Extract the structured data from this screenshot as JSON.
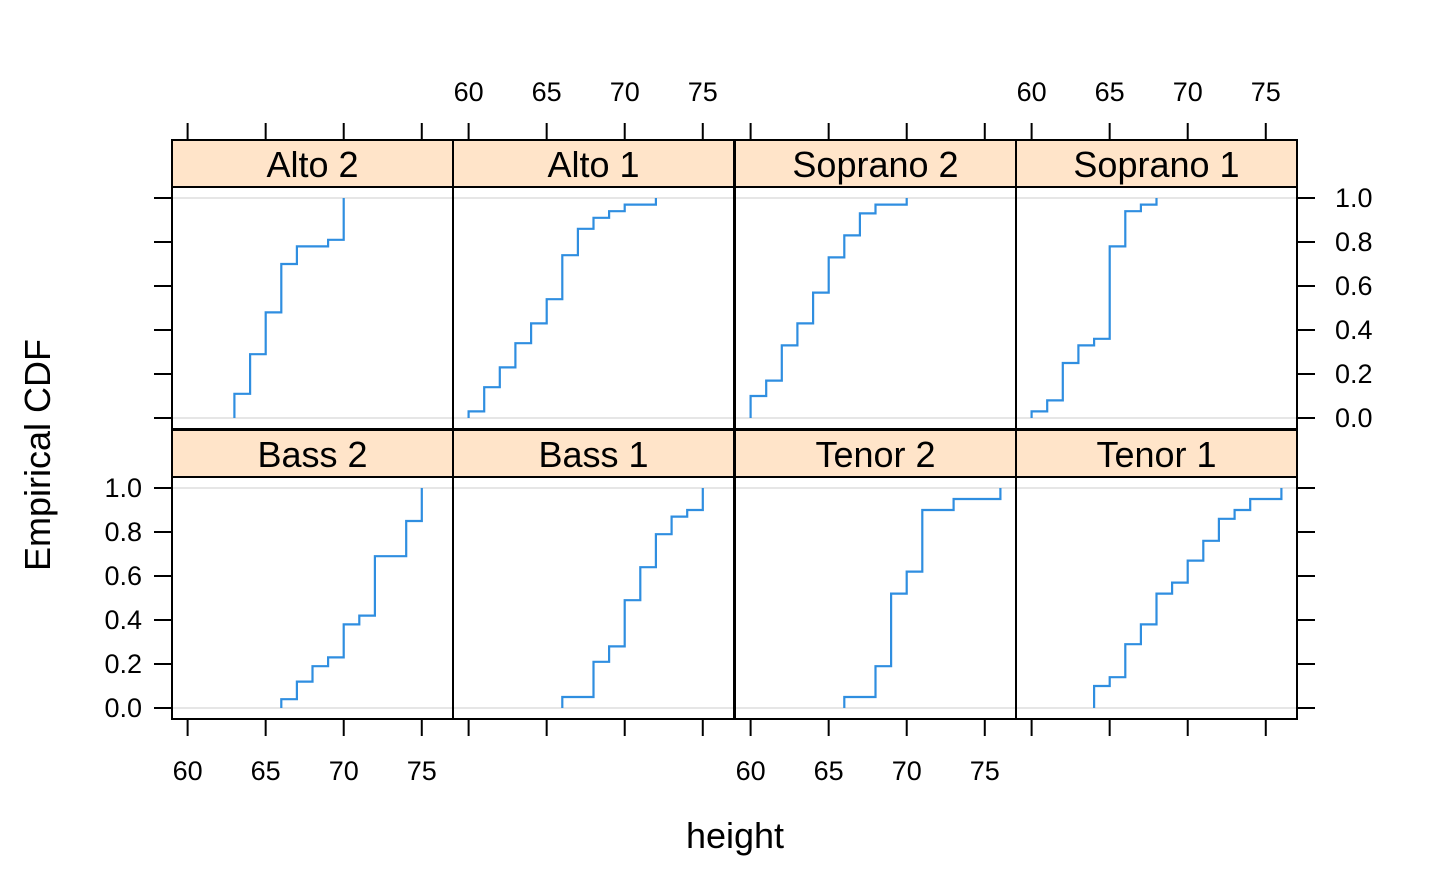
{
  "chart_data": {
    "type": "line",
    "xlabel": "height",
    "ylabel": "Empirical CDF",
    "xlim": [
      59,
      77
    ],
    "ylim": [
      -0.05,
      1.05
    ],
    "x_ticks": [
      60,
      65,
      70,
      75
    ],
    "y_ticks": [
      0.0,
      0.2,
      0.4,
      0.6,
      0.8,
      1.0
    ],
    "y_tick_labels": [
      "0.0",
      "0.2",
      "0.4",
      "0.6",
      "0.8",
      "1.0"
    ],
    "grid": "reference lines at 0 and 1",
    "colors": {
      "line": "#2f8ee0",
      "strip": "#ffe4c9",
      "reference": "#e6e6e6"
    },
    "layout": {
      "columns": 4,
      "rows": 2
    },
    "panels": [
      {
        "label": "Bass 2",
        "steps": [
          [
            66,
            0.04
          ],
          [
            67,
            0.12
          ],
          [
            68,
            0.19
          ],
          [
            69,
            0.23
          ],
          [
            70,
            0.38
          ],
          [
            71,
            0.42
          ],
          [
            72,
            0.69
          ],
          [
            74,
            0.85
          ],
          [
            75,
            1.0
          ]
        ]
      },
      {
        "label": "Bass 1",
        "steps": [
          [
            66,
            0.05
          ],
          [
            68,
            0.21
          ],
          [
            69,
            0.28
          ],
          [
            70,
            0.49
          ],
          [
            71,
            0.64
          ],
          [
            72,
            0.79
          ],
          [
            73,
            0.87
          ],
          [
            74,
            0.9
          ],
          [
            75,
            1.0
          ]
        ]
      },
      {
        "label": "Tenor 2",
        "steps": [
          [
            66,
            0.05
          ],
          [
            68,
            0.19
          ],
          [
            69,
            0.52
          ],
          [
            70,
            0.62
          ],
          [
            71,
            0.9
          ],
          [
            73,
            0.95
          ],
          [
            76,
            1.0
          ]
        ]
      },
      {
        "label": "Tenor 1",
        "steps": [
          [
            64,
            0.1
          ],
          [
            65,
            0.14
          ],
          [
            66,
            0.29
          ],
          [
            67,
            0.38
          ],
          [
            68,
            0.52
          ],
          [
            69,
            0.57
          ],
          [
            70,
            0.67
          ],
          [
            71,
            0.76
          ],
          [
            72,
            0.86
          ],
          [
            73,
            0.9
          ],
          [
            74,
            0.95
          ],
          [
            76,
            1.0
          ]
        ]
      },
      {
        "label": "Alto 2",
        "steps": [
          [
            63,
            0.11
          ],
          [
            64,
            0.29
          ],
          [
            65,
            0.48
          ],
          [
            66,
            0.7
          ],
          [
            67,
            0.78
          ],
          [
            69,
            0.81
          ],
          [
            70,
            1.0
          ]
        ]
      },
      {
        "label": "Alto 1",
        "steps": [
          [
            60,
            0.03
          ],
          [
            61,
            0.14
          ],
          [
            62,
            0.23
          ],
          [
            63,
            0.34
          ],
          [
            64,
            0.43
          ],
          [
            65,
            0.54
          ],
          [
            66,
            0.74
          ],
          [
            67,
            0.86
          ],
          [
            68,
            0.91
          ],
          [
            69,
            0.94
          ],
          [
            70,
            0.97
          ],
          [
            72,
            1.0
          ]
        ]
      },
      {
        "label": "Soprano 2",
        "steps": [
          [
            60,
            0.1
          ],
          [
            61,
            0.17
          ],
          [
            62,
            0.33
          ],
          [
            63,
            0.43
          ],
          [
            64,
            0.57
          ],
          [
            65,
            0.73
          ],
          [
            66,
            0.83
          ],
          [
            67,
            0.93
          ],
          [
            68,
            0.97
          ],
          [
            70,
            1.0
          ]
        ]
      },
      {
        "label": "Soprano 1",
        "steps": [
          [
            60,
            0.03
          ],
          [
            61,
            0.08
          ],
          [
            62,
            0.25
          ],
          [
            63,
            0.33
          ],
          [
            64,
            0.36
          ],
          [
            65,
            0.78
          ],
          [
            66,
            0.94
          ],
          [
            67,
            0.97
          ],
          [
            68,
            1.0
          ]
        ]
      }
    ]
  }
}
